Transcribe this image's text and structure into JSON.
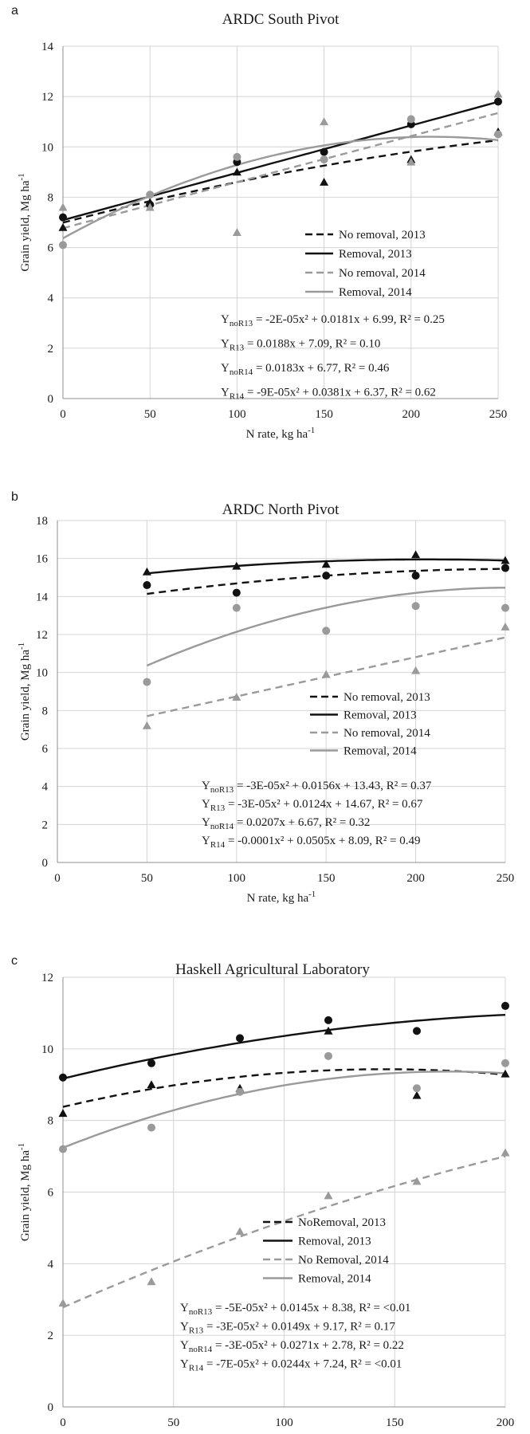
{
  "chart_data": [
    {
      "type": "scatter",
      "panel_label": "a",
      "title": "ARDC South Pivot",
      "xlabel": "N rate, kg ha",
      "xlabel_sup": "-1",
      "ylabel": "Grain yield, Mg ha",
      "ylabel_sup": "-1",
      "xlim": [
        0,
        250
      ],
      "ylim": [
        0,
        14
      ],
      "xticks": [
        0,
        50,
        100,
        150,
        200,
        250
      ],
      "yticks": [
        0,
        2,
        4,
        6,
        8,
        10,
        12,
        14
      ],
      "grid": true,
      "legend_position": "center-right",
      "series": [
        {
          "name": "No removal, 2013",
          "color": "#111111",
          "marker": "triangle",
          "line": "dashed",
          "x": [
            0,
            50,
            100,
            150,
            200,
            250
          ],
          "y": [
            6.8,
            7.8,
            9.0,
            8.6,
            9.5,
            10.6
          ],
          "fit": [
            -2e-05,
            0.0181,
            6.99
          ]
        },
        {
          "name": "Removal, 2013",
          "color": "#111111",
          "marker": "circle",
          "line": "solid",
          "x": [
            0,
            50,
            100,
            150,
            200,
            250
          ],
          "y": [
            7.2,
            7.7,
            9.4,
            9.8,
            10.9,
            11.8
          ],
          "fit": [
            0,
            0.0188,
            7.09
          ]
        },
        {
          "name": "No removal, 2014",
          "color": "#9a9a9a",
          "marker": "triangle",
          "line": "dashed",
          "x": [
            0,
            50,
            100,
            150,
            200,
            250
          ],
          "y": [
            7.6,
            7.6,
            6.6,
            11.0,
            9.4,
            12.1
          ],
          "fit": [
            0,
            0.0183,
            6.77
          ]
        },
        {
          "name": "Removal, 2014",
          "color": "#9a9a9a",
          "marker": "circle",
          "line": "solid",
          "x": [
            0,
            50,
            100,
            150,
            200,
            250
          ],
          "y": [
            6.1,
            8.1,
            9.6,
            9.5,
            11.1,
            10.5
          ],
          "fit": [
            -9e-05,
            0.0381,
            6.37
          ]
        }
      ],
      "equations": [
        {
          "sub": "noR13",
          "text": " = -2E-05x² + 0.0181x + 6.99, R² = 0.25"
        },
        {
          "sub": "R13",
          "text": " = 0.0188x + 7.09, R² = 0.10"
        },
        {
          "sub": "noR14",
          "text": " = 0.0183x + 6.77, R² = 0.46"
        },
        {
          "sub": "R14",
          "text": " = -9E-05x² + 0.0381x + 6.37, R² = 0.62"
        }
      ]
    },
    {
      "type": "scatter",
      "panel_label": "b",
      "title": "ARDC North Pivot",
      "xlabel": "N rate, kg ha",
      "xlabel_sup": "-1",
      "ylabel": "Grain yield, Mg ha",
      "ylabel_sup": "-1",
      "xlim": [
        0,
        250
      ],
      "ylim": [
        0,
        18
      ],
      "xticks": [
        0,
        50,
        100,
        150,
        200,
        250
      ],
      "yticks": [
        0,
        2,
        4,
        6,
        8,
        10,
        12,
        14,
        16,
        18
      ],
      "grid": true,
      "legend_position": "center-right",
      "series": [
        {
          "name": "No removal, 2013",
          "color": "#111111",
          "marker": "circle",
          "line": "dashed",
          "x": [
            50,
            100,
            150,
            200,
            250
          ],
          "y": [
            14.6,
            14.2,
            15.1,
            15.1,
            15.5
          ],
          "fit": [
            -3e-05,
            0.0156,
            13.43
          ]
        },
        {
          "name": "Removal, 2013",
          "color": "#111111",
          "marker": "triangle",
          "line": "solid",
          "x": [
            50,
            100,
            150,
            200,
            250
          ],
          "y": [
            15.3,
            15.6,
            15.7,
            16.2,
            15.9
          ],
          "fit": [
            -3e-05,
            0.0124,
            14.67
          ]
        },
        {
          "name": "No removal, 2014",
          "color": "#9a9a9a",
          "marker": "triangle",
          "line": "dashed",
          "x": [
            50,
            100,
            150,
            200,
            250
          ],
          "y": [
            7.2,
            8.7,
            9.9,
            10.1,
            12.4
          ],
          "fit": [
            0,
            0.0207,
            6.67
          ]
        },
        {
          "name": "Removal, 2014",
          "color": "#9a9a9a",
          "marker": "circle",
          "line": "solid",
          "x": [
            50,
            100,
            150,
            200,
            250
          ],
          "y": [
            9.5,
            13.4,
            12.2,
            13.5,
            13.4
          ],
          "fit": [
            -0.0001,
            0.0505,
            8.09
          ]
        }
      ],
      "equations": [
        {
          "sub": "noR13",
          "text": " = -3E-05x² + 0.0156x + 13.43, R² = 0.37"
        },
        {
          "sub": "R13",
          "text": " = -3E-05x² + 0.0124x + 14.67, R² = 0.67"
        },
        {
          "sub": "noR14",
          "text": " = 0.0207x + 6.67, R² = 0.32"
        },
        {
          "sub": "R14",
          "text": " = -0.0001x² + 0.0505x + 8.09, R² = 0.49"
        }
      ]
    },
    {
      "type": "scatter",
      "panel_label": "c",
      "title": "Haskell Agricultural Laboratory",
      "xlabel": "N rate, kg ha",
      "xlabel_sup": "-1",
      "ylabel": "Grain yield, Mg ha",
      "ylabel_sup": "-1",
      "xlim": [
        0,
        200
      ],
      "ylim": [
        0,
        12
      ],
      "xticks": [
        0,
        50,
        100,
        150,
        200
      ],
      "yticks": [
        0,
        2,
        4,
        6,
        8,
        10,
        12
      ],
      "grid": true,
      "legend_position": "center-right",
      "series": [
        {
          "name": "NoRemoval, 2013",
          "color": "#111111",
          "marker": "triangle",
          "line": "dashed",
          "x": [
            0,
            40,
            80,
            120,
            160,
            200
          ],
          "y": [
            8.2,
            9.0,
            8.9,
            10.5,
            8.7,
            9.3
          ],
          "fit": [
            -5e-05,
            0.0145,
            8.38
          ]
        },
        {
          "name": "Removal, 2013",
          "color": "#111111",
          "marker": "circle",
          "line": "solid",
          "x": [
            0,
            40,
            80,
            120,
            160,
            200
          ],
          "y": [
            9.2,
            9.6,
            10.3,
            10.8,
            10.5,
            11.2
          ],
          "fit": [
            -3e-05,
            0.0149,
            9.17
          ]
        },
        {
          "name": "No Removal, 2014",
          "color": "#9a9a9a",
          "marker": "triangle",
          "line": "dashed",
          "x": [
            0,
            40,
            80,
            120,
            160,
            200
          ],
          "y": [
            2.9,
            3.5,
            4.9,
            5.9,
            6.3,
            7.1
          ],
          "fit": [
            -3e-05,
            0.0271,
            2.78
          ]
        },
        {
          "name": "Removal, 2014",
          "color": "#9a9a9a",
          "marker": "circle",
          "line": "solid",
          "x": [
            0,
            40,
            80,
            120,
            160,
            200
          ],
          "y": [
            7.2,
            7.8,
            8.8,
            9.8,
            8.9,
            9.6
          ],
          "fit": [
            -7e-05,
            0.0244,
            7.24
          ]
        }
      ],
      "equations": [
        {
          "sub": "noR13",
          "text": " = -5E-05x² + 0.0145x + 8.38, R² = <0.01"
        },
        {
          "sub": "R13",
          "text": " = -3E-05x² + 0.0149x + 9.17, R² = 0.17"
        },
        {
          "sub": "noR14",
          "text": " = -3E-05x² + 0.0271x + 2.78, R² = 0.22"
        },
        {
          "sub": "R14",
          "text": " = -7E-05x² + 0.0244x + 7.24, R² =  <0.01"
        }
      ]
    }
  ]
}
